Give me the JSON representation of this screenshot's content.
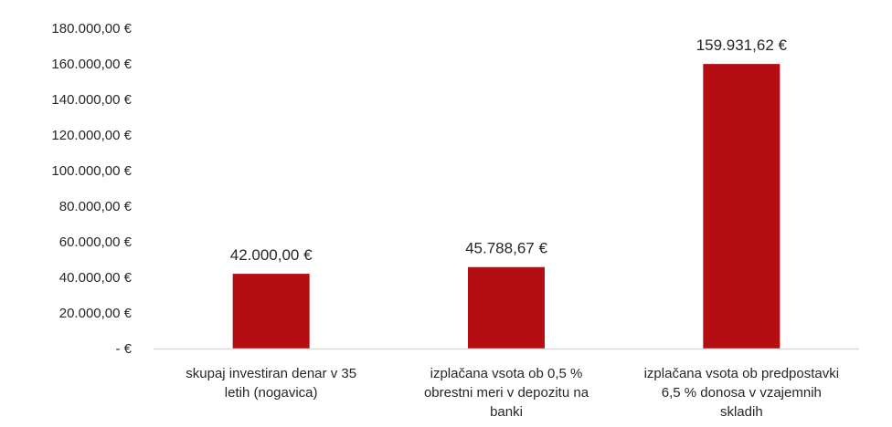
{
  "chart_data": {
    "type": "bar",
    "title": "",
    "xlabel": "",
    "ylabel": "",
    "categories": [
      [
        "skupaj investiran denar v 35",
        "letih (nogavica)"
      ],
      [
        "izplačana vsota ob 0,5 %",
        "obrestni meri v depozitu na",
        "banki"
      ],
      [
        "izplačana vsota ob predpostavki",
        "6,5 % donosa v vzajemnih",
        "skladih"
      ]
    ],
    "values": [
      42000.0,
      45788.67,
      159931.62
    ],
    "data_labels": [
      "42.000,00 €",
      "45.788,67 €",
      "159.931,62 €"
    ],
    "ylim": [
      0,
      180000
    ],
    "y_ticks": [
      {
        "value": 0,
        "label": "-  €"
      },
      {
        "value": 20000,
        "label": "20.000,00 €"
      },
      {
        "value": 40000,
        "label": "40.000,00 €"
      },
      {
        "value": 60000,
        "label": "60.000,00 €"
      },
      {
        "value": 80000,
        "label": "80.000,00 €"
      },
      {
        "value": 100000,
        "label": "100.000,00 €"
      },
      {
        "value": 120000,
        "label": "120.000,00 €"
      },
      {
        "value": 140000,
        "label": "140.000,00 €"
      },
      {
        "value": 160000,
        "label": "160.000,00 €"
      },
      {
        "value": 180000,
        "label": "180.000,00 €"
      }
    ],
    "grid": false,
    "legend": "none",
    "bar_color": "#B50E12",
    "axis_color": "#D9D9D9"
  }
}
